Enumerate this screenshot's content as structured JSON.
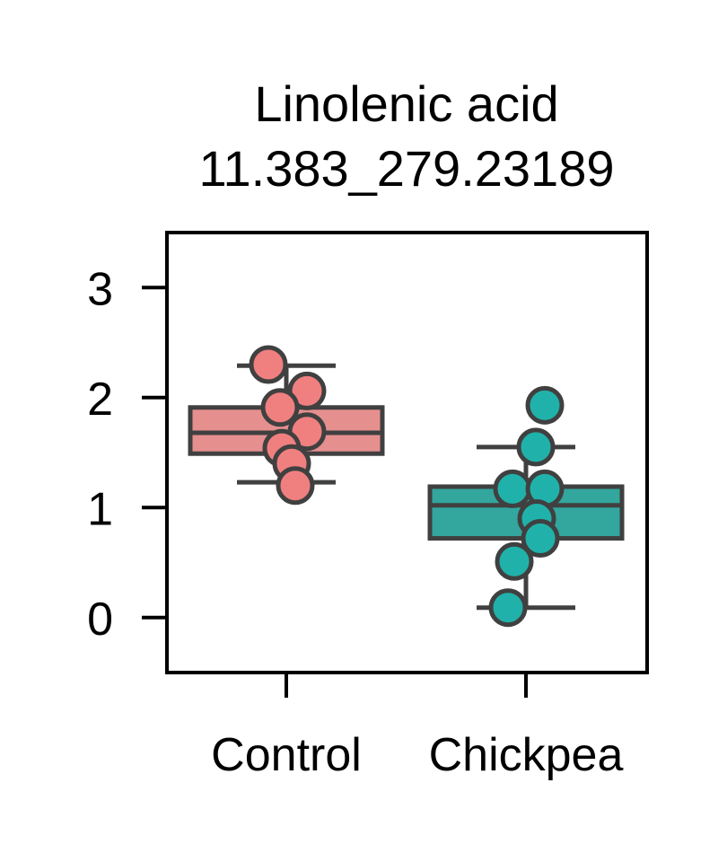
{
  "chart_data": {
    "type": "box",
    "title_line1": "Linolenic acid",
    "title_line2": "11.383_279.23189",
    "xlabel": "",
    "ylabel": "",
    "ylim": [
      -0.5,
      3.5
    ],
    "yticks": [
      0,
      1,
      2,
      3
    ],
    "ytick_labels": [
      "0",
      "1",
      "2",
      "3"
    ],
    "categories": [
      "Control",
      "Chickpea"
    ],
    "series": [
      {
        "category": "Control",
        "box_color": "#e68f8f",
        "point_color": "#f08080",
        "whisker_low": 1.23,
        "q1": 1.49,
        "median": 1.68,
        "q3": 1.91,
        "whisker_high": 2.29,
        "points": [
          2.3,
          2.06,
          1.91,
          1.69,
          1.54,
          1.4,
          1.2
        ]
      },
      {
        "category": "Chickpea",
        "box_color": "#33a69e",
        "point_color": "#20b2aa",
        "whisker_low": 0.09,
        "q1": 0.72,
        "median": 1.02,
        "q3": 1.19,
        "whisker_high": 1.55,
        "points": [
          1.93,
          1.55,
          1.17,
          1.17,
          0.9,
          0.72,
          0.51,
          0.09
        ]
      }
    ],
    "edge_color": "#404040",
    "grid": false
  }
}
